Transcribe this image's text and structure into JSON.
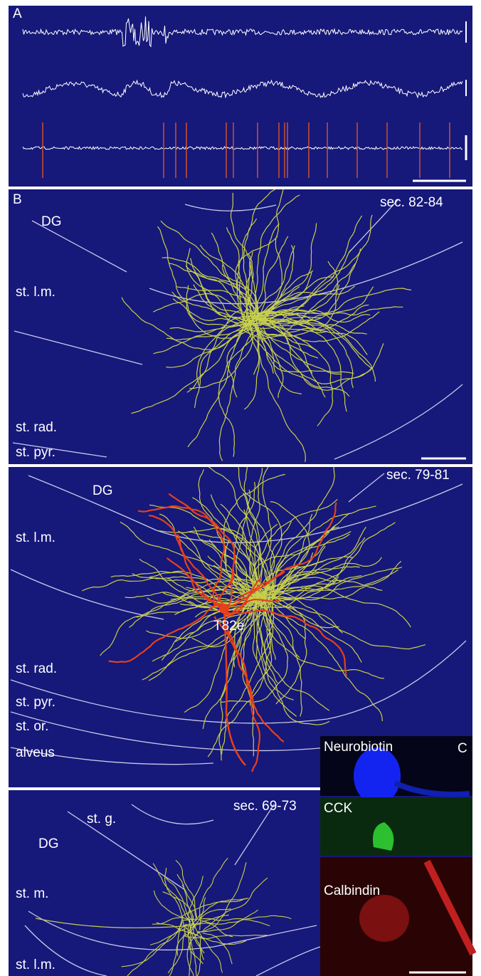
{
  "panels": [
    {
      "label": "A"
    },
    {
      "label": "B",
      "section": "sec. 82-84",
      "layers": [
        "DG",
        "st. l.m.",
        "st. rad.",
        "st. pyr."
      ]
    },
    {
      "section": "sec. 79-81",
      "layers": [
        "DG",
        "st. l.m.",
        "st. rad.",
        "st. pyr.",
        "st. or.",
        "alveus"
      ],
      "cell": "T82e"
    },
    {
      "section": "sec. 69-73",
      "layers": [
        "st. g.",
        "DG",
        "st. m.",
        "st. l.m."
      ]
    }
  ],
  "inset": {
    "label": "C",
    "stains": [
      "Neurobiotin",
      "CCK",
      "Calbindin"
    ]
  }
}
